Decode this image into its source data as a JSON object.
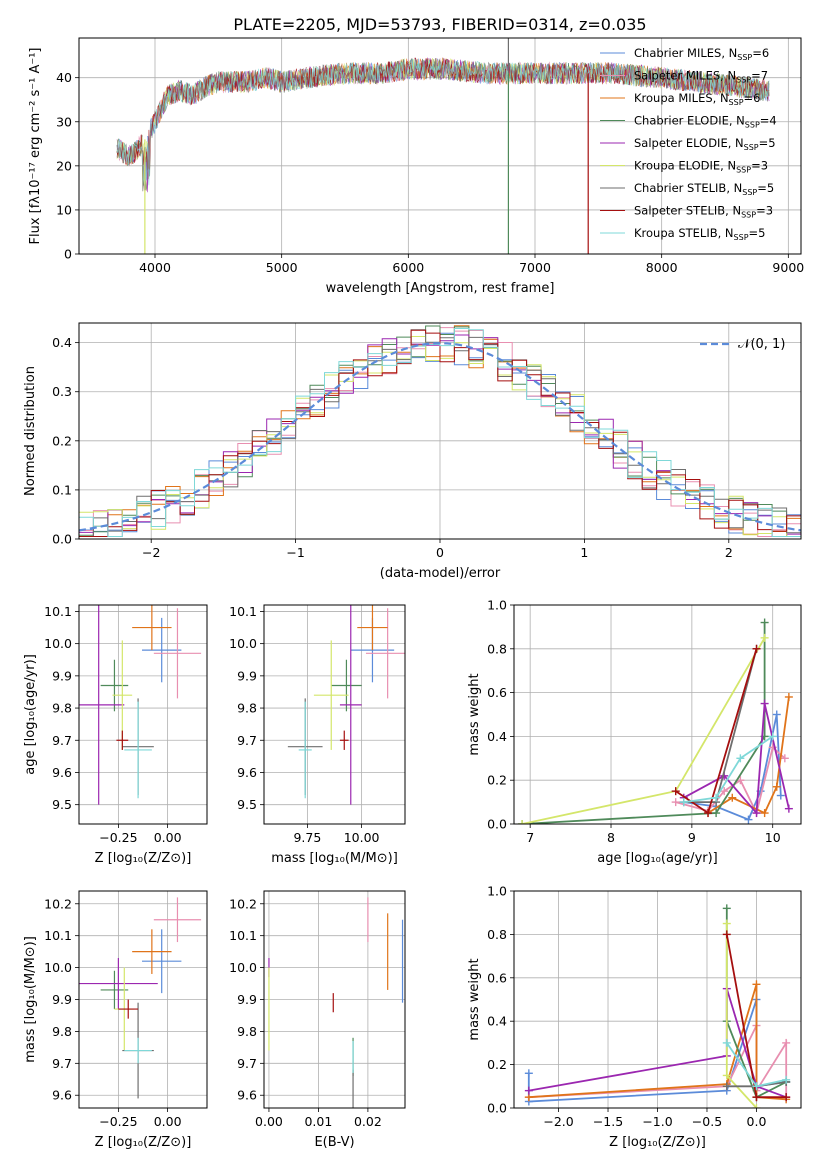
{
  "figure": {
    "title": "PLATE=2205, MJD=53793, FIBERID=0314, z=0.035"
  },
  "colors": {
    "axes_frame": "#000000",
    "grid": "#b0b0b0",
    "normal_curve": "#5b8bd9"
  },
  "series_styles": [
    {
      "name": "Chabrier MILES",
      "nssp": "6",
      "color": "#5b8bd9"
    },
    {
      "name": "Salpeter MILES",
      "nssp": "7",
      "color": "#e88fb0"
    },
    {
      "name": "Kroupa MILES",
      "nssp": "6",
      "color": "#e0741a"
    },
    {
      "name": "Chabrier ELODIE",
      "nssp": "4",
      "color": "#4f8a5a"
    },
    {
      "name": "Salpeter ELODIE",
      "nssp": "5",
      "color": "#9b27b0"
    },
    {
      "name": "Kroupa ELODIE",
      "nssp": "3",
      "color": "#d4e66a"
    },
    {
      "name": "Chabrier STELIB",
      "nssp": "5",
      "color": "#6e6e6e"
    },
    {
      "name": "Salpeter STELIB",
      "nssp": "3",
      "color": "#a50f0f"
    },
    {
      "name": "Kroupa STELIB",
      "nssp": "5",
      "color": "#7fd8d8"
    }
  ],
  "chart_data": [
    {
      "id": "spectrum",
      "type": "line",
      "xlabel": "wavelength [Angstrom, rest frame]",
      "ylabel": "Flux [fλ10⁻¹⁷ erg cm⁻² s⁻¹ A⁻¹]",
      "xlim": [
        3400,
        9100
      ],
      "ylim": [
        0,
        49
      ],
      "xticks": [
        4000,
        5000,
        6000,
        7000,
        8000,
        9000
      ],
      "yticks": [
        0,
        10,
        20,
        30,
        40
      ],
      "legend_position": "right",
      "continuum": [
        [
          3700,
          24
        ],
        [
          3800,
          22
        ],
        [
          3900,
          25
        ],
        [
          4000,
          30
        ],
        [
          4100,
          36
        ],
        [
          4200,
          37
        ],
        [
          4300,
          36
        ],
        [
          4400,
          38
        ],
        [
          4500,
          39
        ],
        [
          4700,
          39
        ],
        [
          4900,
          40
        ],
        [
          5000,
          39
        ],
        [
          5200,
          40
        ],
        [
          5500,
          41
        ],
        [
          5800,
          41
        ],
        [
          6000,
          42
        ],
        [
          6300,
          42
        ],
        [
          6600,
          41
        ],
        [
          7000,
          41
        ],
        [
          7300,
          41
        ],
        [
          7600,
          41
        ],
        [
          8000,
          40
        ],
        [
          8300,
          39
        ],
        [
          8600,
          38
        ],
        [
          8850,
          37
        ]
      ],
      "spikes": [
        {
          "series": "Kroupa ELODIE",
          "x": 3920,
          "y": 0
        },
        {
          "series": "Chabrier ELODIE",
          "x": 6790,
          "y": 0
        },
        {
          "series": "Salpeter STELIB",
          "x": 7420,
          "y": 0
        },
        {
          "series": "Chabrier STELIB",
          "x": 6790,
          "y": 49
        }
      ]
    },
    {
      "id": "residual-hist",
      "type": "histogram",
      "xlabel": "(data-model)/error",
      "ylabel": "Normed distribution",
      "xlim": [
        -2.5,
        2.5
      ],
      "ylim": [
        0,
        0.44
      ],
      "xticks": [
        -2,
        -1,
        0,
        1,
        2
      ],
      "yticks": [
        0.0,
        0.1,
        0.2,
        0.3,
        0.4
      ],
      "bin_width": 0.1,
      "gaussian_label": "𝒩(0, 1)",
      "gaussian": {
        "mean": 0,
        "sigma": 1
      }
    },
    {
      "id": "age-vs-Z",
      "type": "errorbar",
      "xlabel": "Z [log₁₀(Z/Z⊙)]",
      "ylabel": "age  [log₁₀(age/yr)]",
      "xlim": [
        -0.45,
        0.2
      ],
      "ylim": [
        9.44,
        10.12
      ],
      "xticks": [
        -0.25,
        0.0
      ],
      "yticks": [
        9.5,
        9.6,
        9.7,
        9.8,
        9.9,
        10.0,
        10.1
      ],
      "points": [
        {
          "s": 0,
          "x": -0.03,
          "y": 9.98,
          "ex": 0.1,
          "ey": 0.1
        },
        {
          "s": 1,
          "x": 0.05,
          "y": 9.97,
          "ex": 0.12,
          "ey": 0.14
        },
        {
          "s": 2,
          "x": -0.08,
          "y": 10.05,
          "ex": 0.1,
          "ey": 0.07
        },
        {
          "s": 3,
          "x": -0.27,
          "y": 9.87,
          "ex": 0.07,
          "ey": 0.08
        },
        {
          "s": 4,
          "x": -0.35,
          "y": 9.81,
          "ex": 0.13,
          "ey": 0.31
        },
        {
          "s": 5,
          "x": -0.23,
          "y": 9.84,
          "ex": 0.05,
          "ey": 0.17
        },
        {
          "s": 6,
          "x": -0.15,
          "y": 9.68,
          "ex": 0.08,
          "ey": 0.15
        },
        {
          "s": 7,
          "x": -0.23,
          "y": 9.7,
          "ex": 0.03,
          "ey": 0.03
        },
        {
          "s": 8,
          "x": -0.15,
          "y": 9.67,
          "ex": 0.07,
          "ey": 0.15
        }
      ]
    },
    {
      "id": "age-vs-mass",
      "type": "errorbar",
      "xlabel": "mass [log₁₀(M/M⊙)]",
      "ylabel": "",
      "xlim": [
        9.55,
        10.2
      ],
      "ylim": [
        9.44,
        10.12
      ],
      "xticks": [
        9.75,
        10.0
      ],
      "yticks": [
        9.5,
        9.6,
        9.7,
        9.8,
        9.9,
        10.0,
        10.1
      ],
      "points": [
        {
          "s": 0,
          "x": 10.05,
          "y": 9.98,
          "ex": 0.1,
          "ey": 0.1
        },
        {
          "s": 1,
          "x": 10.12,
          "y": 9.97,
          "ex": 0.1,
          "ey": 0.14
        },
        {
          "s": 2,
          "x": 10.05,
          "y": 10.05,
          "ex": 0.07,
          "ey": 0.07
        },
        {
          "s": 3,
          "x": 9.93,
          "y": 9.87,
          "ex": 0.07,
          "ey": 0.08
        },
        {
          "s": 4,
          "x": 9.95,
          "y": 9.81,
          "ex": 0.05,
          "ey": 0.31
        },
        {
          "s": 5,
          "x": 9.86,
          "y": 9.84,
          "ex": 0.08,
          "ey": 0.17
        },
        {
          "s": 6,
          "x": 9.74,
          "y": 9.68,
          "ex": 0.08,
          "ey": 0.15
        },
        {
          "s": 7,
          "x": 9.92,
          "y": 9.7,
          "ex": 0.02,
          "ey": 0.03
        },
        {
          "s": 8,
          "x": 9.74,
          "y": 9.67,
          "ex": 0.03,
          "ey": 0.15
        }
      ]
    },
    {
      "id": "weight-vs-age",
      "type": "line",
      "xlabel": "age  [log₁₀(age/yr)]",
      "ylabel": "mass weight",
      "xlim": [
        6.8,
        10.35
      ],
      "ylim": [
        0,
        1.0
      ],
      "xticks": [
        7,
        8,
        9,
        10
      ],
      "yticks": [
        0.0,
        0.2,
        0.4,
        0.6,
        0.8,
        1.0
      ],
      "series": [
        {
          "s": 0,
          "points": [
            [
              8.9,
              0.1
            ],
            [
              9.3,
              0.08
            ],
            [
              9.7,
              0.02
            ],
            [
              9.85,
              0.15
            ],
            [
              10.05,
              0.5
            ],
            [
              10.1,
              0.13
            ]
          ]
        },
        {
          "s": 1,
          "points": [
            [
              8.8,
              0.1
            ],
            [
              9.2,
              0.06
            ],
            [
              9.4,
              0.15
            ],
            [
              9.6,
              0.2
            ],
            [
              9.8,
              0.05
            ],
            [
              10.0,
              0.35
            ],
            [
              10.15,
              0.3
            ]
          ]
        },
        {
          "s": 2,
          "points": [
            [
              9.2,
              0.05
            ],
            [
              9.5,
              0.12
            ],
            [
              9.9,
              0.05
            ],
            [
              10.05,
              0.17
            ],
            [
              10.2,
              0.58
            ]
          ]
        },
        {
          "s": 3,
          "points": [
            [
              6.9,
              0.0
            ],
            [
              9.3,
              0.05
            ],
            [
              9.9,
              0.4
            ],
            [
              9.9,
              0.92
            ]
          ]
        },
        {
          "s": 4,
          "points": [
            [
              8.9,
              0.12
            ],
            [
              9.4,
              0.22
            ],
            [
              9.8,
              0.05
            ],
            [
              9.9,
              0.55
            ],
            [
              10.2,
              0.07
            ]
          ]
        },
        {
          "s": 5,
          "points": [
            [
              6.9,
              0.0
            ],
            [
              8.8,
              0.15
            ],
            [
              9.9,
              0.85
            ]
          ]
        },
        {
          "s": 6,
          "points": [
            [
              8.9,
              0.1
            ],
            [
              9.3,
              0.1
            ],
            [
              9.8,
              0.8
            ]
          ]
        },
        {
          "s": 7,
          "points": [
            [
              8.8,
              0.15
            ],
            [
              9.2,
              0.05
            ],
            [
              9.8,
              0.8
            ]
          ]
        },
        {
          "s": 8,
          "points": [
            [
              8.9,
              0.1
            ],
            [
              9.3,
              0.12
            ],
            [
              9.6,
              0.3
            ],
            [
              10.0,
              0.4
            ]
          ]
        }
      ]
    },
    {
      "id": "mass-vs-Z",
      "type": "errorbar",
      "xlabel": "Z [log₁₀(Z/Z⊙)]",
      "ylabel": "mass [log₁₀(M/M⊙)]",
      "xlim": [
        -0.45,
        0.2
      ],
      "ylim": [
        9.56,
        10.24
      ],
      "xticks": [
        -0.25,
        0.0
      ],
      "yticks": [
        9.6,
        9.7,
        9.8,
        9.9,
        10.0,
        10.1,
        10.2
      ],
      "points": [
        {
          "s": 0,
          "x": -0.03,
          "y": 10.02,
          "ex": 0.1,
          "ey": 0.1
        },
        {
          "s": 1,
          "x": 0.05,
          "y": 10.15,
          "ex": 0.12,
          "ey": 0.07
        },
        {
          "s": 2,
          "x": -0.08,
          "y": 10.05,
          "ex": 0.1,
          "ey": 0.07
        },
        {
          "s": 3,
          "x": -0.27,
          "y": 9.93,
          "ex": 0.07,
          "ey": 0.06
        },
        {
          "s": 4,
          "x": -0.25,
          "y": 9.95,
          "ex": 0.2,
          "ey": 0.08
        },
        {
          "s": 5,
          "x": -0.22,
          "y": 9.87,
          "ex": 0.05,
          "ey": 0.13
        },
        {
          "s": 6,
          "x": -0.15,
          "y": 9.74,
          "ex": 0.08,
          "ey": 0.15
        },
        {
          "s": 7,
          "x": -0.2,
          "y": 9.87,
          "ex": 0.05,
          "ey": 0.03
        },
        {
          "s": 8,
          "x": -0.15,
          "y": 9.74,
          "ex": 0.07,
          "ey": 0.04
        }
      ]
    },
    {
      "id": "mass-vs-EBV",
      "type": "errorbar",
      "xlabel": "E(B-V)",
      "ylabel": "",
      "xlim": [
        -0.001,
        0.0275
      ],
      "ylim": [
        9.56,
        10.24
      ],
      "xticks": [
        0.0,
        0.01,
        0.02
      ],
      "xtick_labels": [
        "0.00",
        "0.01",
        "0.02"
      ],
      "yticks": [
        9.6,
        9.7,
        9.8,
        9.9,
        10.0,
        10.1,
        10.2
      ],
      "points": [
        {
          "s": 0,
          "x": 0.027,
          "y": 10.02,
          "ex": 0,
          "ey": 0.13
        },
        {
          "s": 1,
          "x": 0.02,
          "y": 10.15,
          "ex": 0,
          "ey": 0.07
        },
        {
          "s": 2,
          "x": 0.024,
          "y": 10.05,
          "ex": 0,
          "ey": 0.12
        },
        {
          "s": 3,
          "x": 0.017,
          "y": 9.72,
          "ex": 0,
          "ey": 0.06
        },
        {
          "s": 4,
          "x": 0.0,
          "y": 10.0,
          "ex": 0,
          "ey": 0.03
        },
        {
          "s": 5,
          "x": 0.0,
          "y": 9.87,
          "ex": 0,
          "ey": 0.13
        },
        {
          "s": 6,
          "x": 0.017,
          "y": 9.62,
          "ex": 0,
          "ey": 0.06
        },
        {
          "s": 7,
          "x": 0.013,
          "y": 9.89,
          "ex": 0,
          "ey": 0.03
        },
        {
          "s": 8,
          "x": 0.017,
          "y": 9.72,
          "ex": 0,
          "ey": 0.05
        }
      ]
    },
    {
      "id": "weight-vs-Z",
      "type": "line",
      "xlabel": "Z [log₁₀(Z/Z⊙)]",
      "ylabel": "mass weight",
      "xlim": [
        -2.45,
        0.45
      ],
      "ylim": [
        0,
        1.0
      ],
      "xticks": [
        -2.0,
        -1.5,
        -1.0,
        -0.5,
        0.0
      ],
      "yticks": [
        0.0,
        0.2,
        0.4,
        0.6,
        0.8,
        1.0
      ],
      "series": [
        {
          "s": 0,
          "points": [
            [
              -2.3,
              0.16
            ],
            [
              -2.3,
              0.03
            ],
            [
              -0.3,
              0.08
            ],
            [
              0.0,
              0.5
            ],
            [
              0.0,
              0.1
            ],
            [
              0.3,
              0.12
            ]
          ]
        },
        {
          "s": 1,
          "points": [
            [
              -2.3,
              0.05
            ],
            [
              -0.3,
              0.1
            ],
            [
              0.0,
              0.38
            ],
            [
              0.0,
              0.08
            ],
            [
              0.3,
              0.3
            ],
            [
              0.3,
              0.05
            ]
          ]
        },
        {
          "s": 2,
          "points": [
            [
              -2.3,
              0.05
            ],
            [
              -0.3,
              0.11
            ],
            [
              0.0,
              0.57
            ],
            [
              0.0,
              0.05
            ],
            [
              0.3,
              0.04
            ]
          ]
        },
        {
          "s": 3,
          "points": [
            [
              -0.3,
              0.92
            ],
            [
              -0.3,
              0.4
            ],
            [
              0.0,
              0.05
            ],
            [
              0.3,
              0.12
            ]
          ]
        },
        {
          "s": 4,
          "points": [
            [
              -2.3,
              0.08
            ],
            [
              -0.3,
              0.24
            ],
            [
              -0.3,
              0.55
            ],
            [
              0.0,
              0.1
            ],
            [
              0.3,
              0.05
            ]
          ]
        },
        {
          "s": 5,
          "points": [
            [
              -0.3,
              0.85
            ],
            [
              -0.3,
              0.15
            ],
            [
              0.0,
              0.0
            ]
          ]
        },
        {
          "s": 6,
          "points": [
            [
              -0.3,
              0.1
            ],
            [
              0.0,
              0.1
            ],
            [
              0.3,
              0.12
            ]
          ]
        },
        {
          "s": 7,
          "points": [
            [
              -0.3,
              0.8
            ],
            [
              0.0,
              0.05
            ],
            [
              0.3,
              0.05
            ]
          ]
        },
        {
          "s": 8,
          "points": [
            [
              -0.3,
              0.3
            ],
            [
              0.0,
              0.1
            ],
            [
              0.3,
              0.13
            ]
          ]
        }
      ]
    }
  ]
}
